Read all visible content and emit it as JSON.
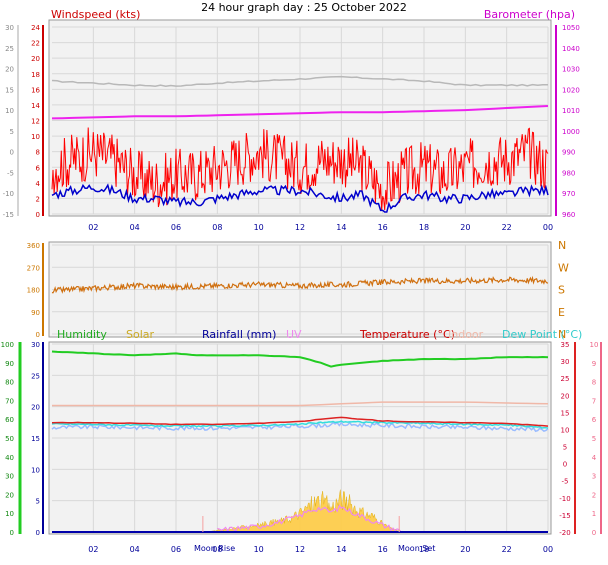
{
  "title": "24 hour graph day : 25 October 2022",
  "colors": {
    "wind": "#ff0000",
    "gust_avg": "#0000cc",
    "barometer": "#ee22ee",
    "barometer_axis": "#cc00cc",
    "dew_point_grey": "#b8b8b8",
    "direction": "#d07010",
    "direction_axis": "#cc7700",
    "humidity": "#22cc22",
    "solar": "#ffcc44",
    "rainfall": "#0000aa",
    "uv": "#ee88ee",
    "temperature": "#dd2222",
    "indoor": "#f0b8a8",
    "dew_point": "#33dddd",
    "apparent": "#99bbff",
    "temp_axis": "#ee6688",
    "grid": "#d8d8d8",
    "plot_bg": "#f2f2f2",
    "time_axis": "#000099"
  },
  "time_ticks": [
    "02",
    "04",
    "06",
    "08",
    "10",
    "12",
    "14",
    "16",
    "18",
    "20",
    "22",
    "00"
  ],
  "moon_labels": {
    "rise": "Moon Rise",
    "set": "Moon Set"
  },
  "chart_data": [
    {
      "type": "line",
      "panel": "wind-barometer",
      "left_axis_title": "Windspeed (kts)",
      "right_axis_title": "Barometer (hpa)",
      "ylim_left": [
        0,
        24
      ],
      "left_ticks": [
        0,
        2,
        4,
        6,
        8,
        10,
        12,
        14,
        16,
        18,
        20,
        22,
        24
      ],
      "far_left_ticks": [
        "30",
        "25",
        "20",
        "15",
        "10",
        "5",
        "0",
        "-5",
        "-10",
        "-15"
      ],
      "ylim_right": [
        960,
        1050
      ],
      "right_ticks": [
        960,
        970,
        980,
        990,
        1000,
        1010,
        1020,
        1030,
        1040,
        1050
      ],
      "x_hours": [
        0,
        24
      ],
      "series": [
        {
          "role": "grey-trace",
          "unit": "left-far",
          "x": [
            0,
            2,
            4,
            6,
            8,
            10,
            12,
            14,
            16,
            18,
            20,
            22,
            24
          ],
          "values": [
            17,
            16.5,
            16,
            15.8,
            16.5,
            17,
            17.5,
            18,
            17.5,
            17,
            16,
            16,
            16
          ]
        },
        {
          "role": "barometer",
          "unit": "hpa",
          "x": [
            0,
            2,
            4,
            6,
            8,
            10,
            12,
            14,
            16,
            18,
            20,
            22,
            24
          ],
          "values": [
            1006,
            1006.5,
            1007,
            1007,
            1007.5,
            1008,
            1008.5,
            1009,
            1009,
            1009.5,
            1010,
            1011,
            1012
          ]
        },
        {
          "role": "wind-gust",
          "unit": "kts",
          "x": [
            0,
            1,
            2,
            3,
            4,
            5,
            6,
            7,
            8,
            9,
            10,
            11,
            12,
            13,
            14,
            15,
            16,
            17,
            18,
            19,
            20,
            21,
            22,
            23,
            24
          ],
          "values": [
            6,
            7,
            8,
            7,
            5,
            4,
            5,
            5,
            6,
            7,
            8,
            7,
            6,
            7,
            7,
            6,
            3,
            5,
            6,
            5,
            6,
            7,
            7,
            8,
            6
          ]
        },
        {
          "role": "wind-average",
          "unit": "kts",
          "x": [
            0,
            1,
            2,
            3,
            4,
            5,
            6,
            7,
            8,
            9,
            10,
            11,
            12,
            13,
            14,
            15,
            16,
            17,
            18,
            19,
            20,
            21,
            22,
            23,
            24
          ],
          "values": [
            2.5,
            3,
            3.5,
            3,
            2,
            2,
            1.5,
            1.5,
            2,
            2.5,
            3,
            3,
            3,
            2.5,
            2,
            2.5,
            0.5,
            2,
            2.5,
            2,
            2,
            2.5,
            2.5,
            3,
            3
          ]
        }
      ]
    },
    {
      "type": "line",
      "panel": "wind-direction",
      "ylim": [
        0,
        360
      ],
      "left_ticks": [
        0,
        90,
        180,
        270,
        360
      ],
      "direction_labels": [
        "N",
        "E",
        "S",
        "W",
        "N"
      ],
      "series": [
        {
          "role": "direction",
          "unit": "degrees",
          "x": [
            0,
            2,
            4,
            6,
            8,
            10,
            12,
            14,
            16,
            18,
            20,
            22,
            24
          ],
          "values": [
            175,
            185,
            195,
            190,
            195,
            200,
            195,
            200,
            210,
            215,
            215,
            220,
            215
          ]
        }
      ]
    },
    {
      "type": "line",
      "panel": "humidity-temperature",
      "legend": [
        "Humidity",
        "Solar",
        "Rainfall (mm)",
        "UV",
        "Temperature (°C)",
        "Indoor",
        "Dew Point (°C)"
      ],
      "humidity_ticks": [
        0,
        10,
        20,
        30,
        40,
        50,
        60,
        70,
        80,
        90,
        100
      ],
      "rain_ticks": [
        0,
        5,
        10,
        15,
        20,
        25,
        30
      ],
      "uv_ticks": [
        0,
        1,
        2,
        3,
        4,
        5,
        6,
        7,
        8,
        9,
        10
      ],
      "temp_ticks": [
        -20,
        -15,
        -10,
        -5,
        0,
        5,
        10,
        15,
        20,
        25,
        30,
        35
      ],
      "series": [
        {
          "role": "humidity",
          "unit": "%",
          "x": [
            0,
            2,
            4,
            6,
            7,
            8,
            10,
            12,
            13,
            13.5,
            14,
            15,
            16,
            18,
            20,
            22,
            24
          ],
          "values": [
            96,
            95,
            94,
            95,
            94,
            94,
            94,
            93,
            90,
            88,
            89,
            90,
            91,
            92,
            92,
            93,
            93
          ]
        },
        {
          "role": "indoor",
          "unit": "°C",
          "x": [
            0,
            4,
            8,
            12,
            14,
            16,
            20,
            24
          ],
          "values": [
            17,
            17,
            17,
            17,
            17.5,
            18,
            18,
            17.5
          ]
        },
        {
          "role": "temperature",
          "unit": "°C",
          "x": [
            0,
            2,
            4,
            6,
            8,
            10,
            12,
            13,
            14,
            16,
            18,
            20,
            22,
            24
          ],
          "values": [
            12,
            12,
            11.8,
            11.5,
            11.5,
            11.8,
            12.3,
            13,
            13.5,
            12.5,
            12.2,
            12,
            11.8,
            11
          ]
        },
        {
          "role": "dew_point",
          "unit": "°C",
          "x": [
            0,
            2,
            4,
            6,
            8,
            10,
            12,
            13,
            14,
            16,
            18,
            20,
            22,
            24
          ],
          "values": [
            11.6,
            11.5,
            11.2,
            11,
            11,
            11.2,
            11.5,
            12,
            12.3,
            12,
            11.8,
            11.5,
            11.3,
            10.5
          ]
        },
        {
          "role": "apparent",
          "unit": "°C",
          "x": [
            0,
            2,
            4,
            6,
            8,
            10,
            12,
            14,
            16,
            18,
            20,
            22,
            24
          ],
          "values": [
            10.5,
            10.8,
            10.6,
            10.4,
            10.4,
            10.6,
            11,
            11.5,
            11.2,
            10.8,
            10.6,
            10.3,
            10
          ]
        },
        {
          "role": "solar",
          "unit": "rain-scale",
          "x": [
            7.5,
            8,
            9,
            10,
            11,
            11.5,
            12,
            12.5,
            13,
            13.5,
            14,
            14.5,
            15,
            15.5,
            16,
            16.5,
            17
          ],
          "values": [
            0,
            0.3,
            0.8,
            1.3,
            2,
            2.5,
            3.5,
            5,
            6,
            4.5,
            6.3,
            5,
            3.5,
            3,
            1.5,
            0.5,
            0
          ]
        },
        {
          "role": "uv",
          "unit": "rain-scale",
          "x": [
            8,
            10,
            11,
            12,
            12.5,
            13,
            13.5,
            14,
            14.5,
            15,
            16,
            17
          ],
          "values": [
            0.3,
            0.9,
            1.6,
            2.6,
            3.5,
            3.8,
            3.2,
            4,
            3.2,
            2.5,
            1.1,
            0
          ]
        },
        {
          "role": "rainfall",
          "unit": "mm",
          "x": [
            0,
            24
          ],
          "values": [
            0,
            0
          ]
        }
      ],
      "markers": [
        7.3,
        16.8
      ]
    }
  ]
}
